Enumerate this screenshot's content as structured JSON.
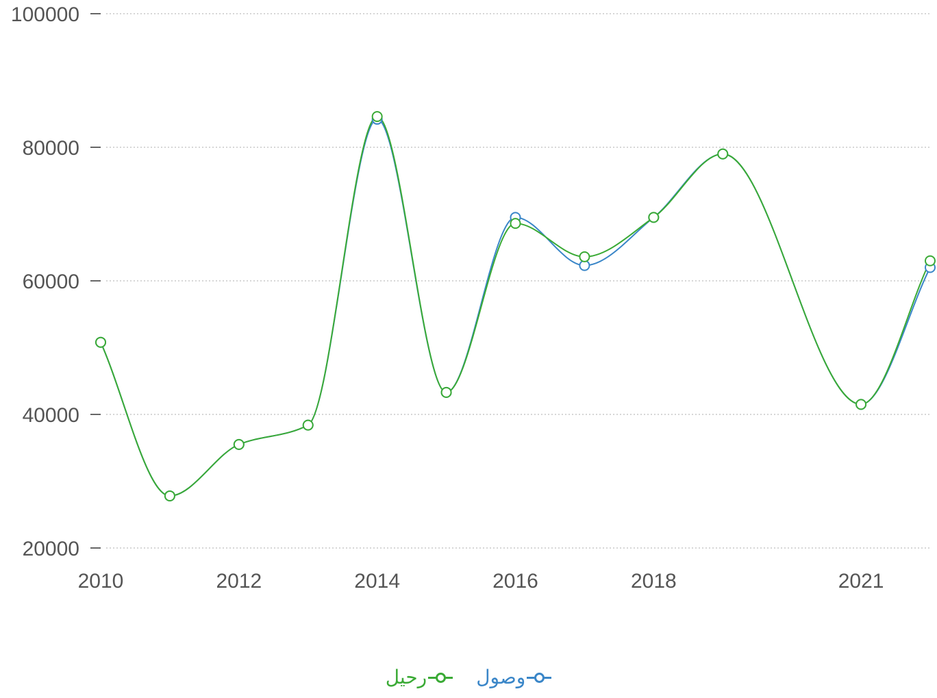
{
  "chart_data": {
    "type": "line",
    "smooth": true,
    "x": [
      2010,
      2011,
      2012,
      2013,
      2014,
      2015,
      2016,
      2017,
      2018,
      2019,
      2021,
      2022
    ],
    "x_tick_labels": [
      "2010",
      "2012",
      "2014",
      "2016",
      "2018",
      "2021"
    ],
    "y_tick_labels": [
      "20000",
      "40000",
      "60000",
      "80000",
      "100000"
    ],
    "ylim": [
      20000,
      100000
    ],
    "grid": true,
    "legend_position": "bottom-center",
    "series": [
      {
        "name": "وصول",
        "color": "#3a86c8",
        "values": [
          50800,
          27800,
          35500,
          38400,
          84200,
          43300,
          69500,
          62300,
          69500,
          79000,
          41500,
          62000
        ]
      },
      {
        "name": "رحيل",
        "color": "#3aaa35",
        "values": [
          50800,
          27800,
          35500,
          38400,
          84600,
          43300,
          68600,
          63600,
          69500,
          79000,
          41500,
          63000
        ]
      }
    ]
  }
}
